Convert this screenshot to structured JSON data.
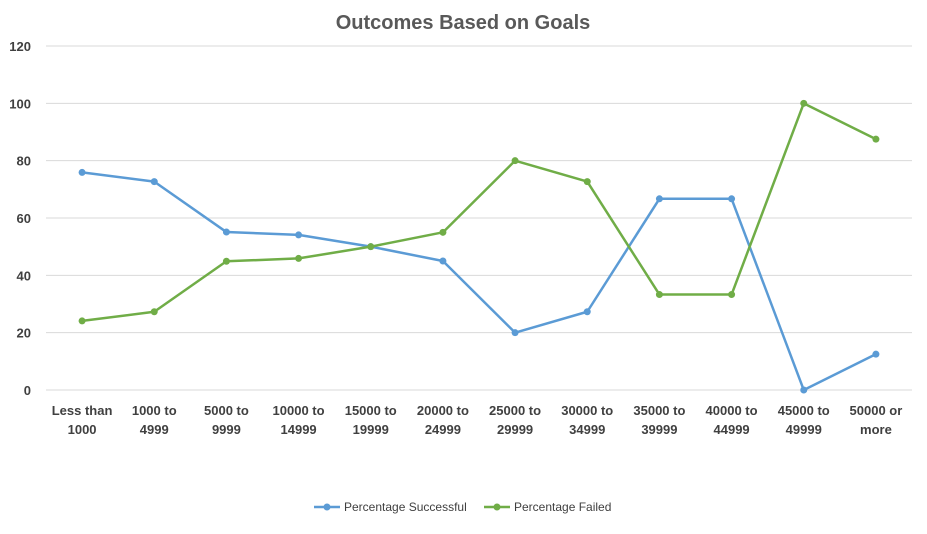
{
  "chart_data": {
    "type": "line",
    "title": "Outcomes Based on Goals",
    "xlabel": "",
    "ylabel": "",
    "ylim": [
      0,
      120
    ],
    "yticks": [
      0,
      20,
      40,
      60,
      80,
      100,
      120
    ],
    "grid": true,
    "legend_position": "bottom",
    "categories": [
      [
        "Less than",
        "1000"
      ],
      [
        "1000 to",
        "4999"
      ],
      [
        "5000 to",
        "9999"
      ],
      [
        "10000 to",
        "14999"
      ],
      [
        "15000 to",
        "19999"
      ],
      [
        "20000 to",
        "24999"
      ],
      [
        "25000 to",
        "29999"
      ],
      [
        "30000 to",
        "34999"
      ],
      [
        "35000 to",
        "39999"
      ],
      [
        "40000 to",
        "44999"
      ],
      [
        "45000 to",
        "49999"
      ],
      [
        "50000 or",
        "more"
      ]
    ],
    "series": [
      {
        "name": "Percentage Successful",
        "color": "#5b9bd5",
        "values": [
          75.9,
          72.7,
          55.1,
          54.1,
          50.0,
          45.0,
          20.0,
          27.3,
          66.7,
          66.7,
          0.0,
          12.5
        ]
      },
      {
        "name": "Percentage Failed",
        "color": "#70ad47",
        "values": [
          24.1,
          27.3,
          44.9,
          45.9,
          50.0,
          55.0,
          80.0,
          72.7,
          33.3,
          33.3,
          100.0,
          87.5
        ]
      }
    ]
  }
}
